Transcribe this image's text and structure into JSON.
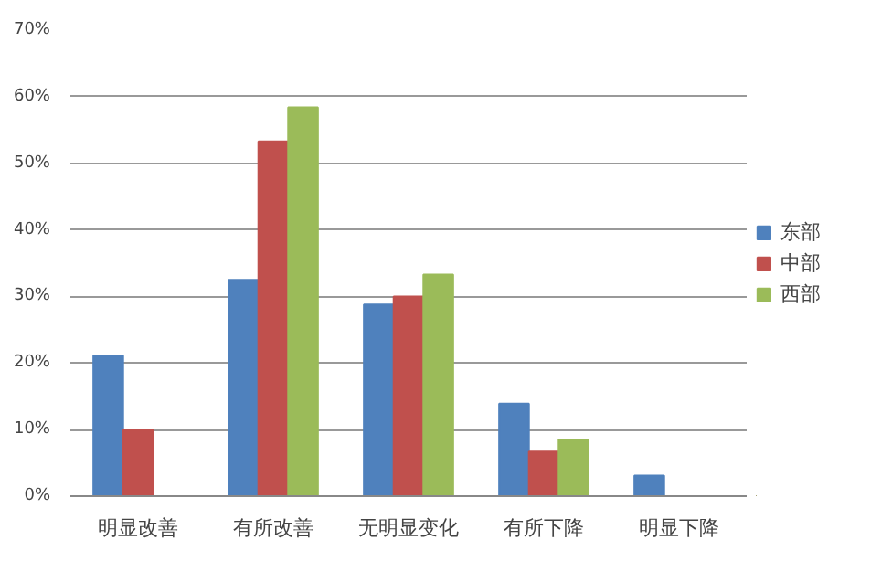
{
  "chart_data": {
    "type": "bar",
    "categories": [
      "明显改善",
      "有所改善",
      "无明显变化",
      "有所下降",
      "明显下降"
    ],
    "series": [
      {
        "name": "东部",
        "color": "#4f81bd",
        "values": [
          21.1,
          32.5,
          28.8,
          13.9,
          3.1
        ]
      },
      {
        "name": "中部",
        "color": "#c0504d",
        "values": [
          10,
          53.3,
          30,
          6.7,
          null
        ]
      },
      {
        "name": "西部",
        "color": "#9bbb59",
        "values": [
          null,
          58.4,
          33.3,
          8.5,
          null
        ]
      }
    ],
    "ylim": [
      0,
      70
    ],
    "yticks": [
      {
        "value": 0,
        "label": "0%"
      },
      {
        "value": 10,
        "label": "10%"
      },
      {
        "value": 20,
        "label": "20%"
      },
      {
        "value": 30,
        "label": "30%"
      },
      {
        "value": 40,
        "label": "40%"
      },
      {
        "value": 50,
        "label": "50%"
      },
      {
        "value": 60,
        "label": "60%"
      },
      {
        "value": 70,
        "label": "70%"
      }
    ],
    "grid": "y",
    "legend": "right"
  }
}
